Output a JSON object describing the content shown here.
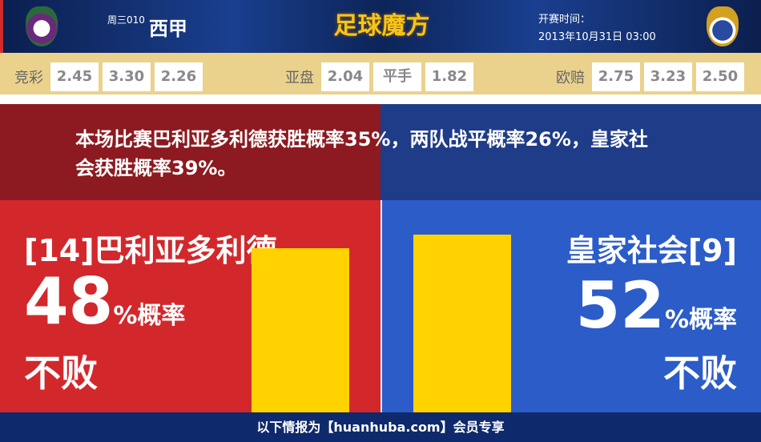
{
  "header": {
    "weekday_code": "周三010",
    "league": "西甲",
    "logo_text": "足球魔方",
    "kickoff_label": "开赛时间：",
    "kickoff_time": "2013年10月31日 03:00"
  },
  "odds": [
    {
      "label": "竞彩",
      "values": [
        "2.45",
        "3.30",
        "2.26"
      ]
    },
    {
      "label": "亚盘",
      "values": [
        "2.04",
        "平手",
        "1.82"
      ]
    },
    {
      "label": "欧赔",
      "values": [
        "2.75",
        "3.23",
        "2.50"
      ]
    }
  ],
  "summary": "本场比赛巴利亚多利德获胜概率35%，两队战平概率26%，皇家社会获胜概率39%。",
  "home": {
    "team": "[14]巴利亚多利德",
    "percent": "48",
    "unit": "%概率",
    "outcome": "不败",
    "value": 48
  },
  "away": {
    "team": "皇家社会[9]",
    "percent": "52",
    "unit": "%概率",
    "outcome": "不败",
    "value": 52
  },
  "colors": {
    "home": "#d2282c",
    "away": "#2b5cc8",
    "bar": "#ffd200"
  },
  "footer": "以下情报为【huanhuba.com】会员专享"
}
